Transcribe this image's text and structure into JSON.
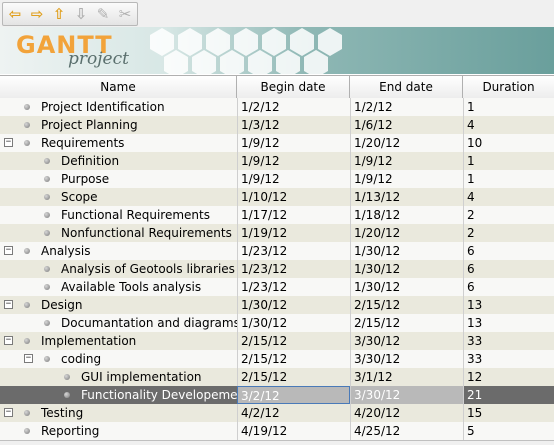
{
  "toolbar": {
    "buttons": [
      {
        "name": "back-arrow-icon",
        "glyph": "⇦",
        "color": "#e0a020"
      },
      {
        "name": "forward-arrow-icon",
        "glyph": "⇨",
        "color": "#e0a020"
      },
      {
        "name": "up-arrow-icon",
        "glyph": "⇧",
        "color": "#e0a020"
      },
      {
        "name": "down-arrow-icon",
        "glyph": "⇩",
        "color": "#b0b0b0"
      },
      {
        "name": "link-icon",
        "glyph": "✎",
        "color": "#b0b0b0"
      },
      {
        "name": "unlink-icon",
        "glyph": "✂",
        "color": "#b0b0b0"
      }
    ]
  },
  "banner": {
    "logo_main": "GANTT",
    "logo_sub": "project"
  },
  "columns": {
    "name": "Name",
    "begin": "Begin date",
    "end": "End date",
    "duration": "Duration"
  },
  "tasks": [
    {
      "name": "Project Identification",
      "begin": "1/2/12",
      "end": "1/2/12",
      "duration": "1",
      "level": 0,
      "toggle": ""
    },
    {
      "name": "Project Planning",
      "begin": "1/3/12",
      "end": "1/6/12",
      "duration": "4",
      "level": 0,
      "toggle": ""
    },
    {
      "name": "Requirements",
      "begin": "1/9/12",
      "end": "1/20/12",
      "duration": "10",
      "level": 0,
      "toggle": "−"
    },
    {
      "name": "Definition",
      "begin": "1/9/12",
      "end": "1/9/12",
      "duration": "1",
      "level": 1,
      "toggle": ""
    },
    {
      "name": "Purpose",
      "begin": "1/9/12",
      "end": "1/9/12",
      "duration": "1",
      "level": 1,
      "toggle": ""
    },
    {
      "name": "Scope",
      "begin": "1/10/12",
      "end": "1/13/12",
      "duration": "4",
      "level": 1,
      "toggle": ""
    },
    {
      "name": "Functional Requirements",
      "begin": "1/17/12",
      "end": "1/18/12",
      "duration": "2",
      "level": 1,
      "toggle": ""
    },
    {
      "name": "Nonfunctional Requirements",
      "begin": "1/19/12",
      "end": "1/20/12",
      "duration": "2",
      "level": 1,
      "toggle": ""
    },
    {
      "name": "Analysis",
      "begin": "1/23/12",
      "end": "1/30/12",
      "duration": "6",
      "level": 0,
      "toggle": "−"
    },
    {
      "name": "Analysis of Geotools libraries",
      "begin": "1/23/12",
      "end": "1/30/12",
      "duration": "6",
      "level": 1,
      "toggle": ""
    },
    {
      "name": "Available Tools analysis",
      "begin": "1/23/12",
      "end": "1/30/12",
      "duration": "6",
      "level": 1,
      "toggle": ""
    },
    {
      "name": "Design",
      "begin": "1/30/12",
      "end": "2/15/12",
      "duration": "13",
      "level": 0,
      "toggle": "−"
    },
    {
      "name": "Documantation and diagrams",
      "begin": "1/30/12",
      "end": "2/15/12",
      "duration": "13",
      "level": 1,
      "toggle": ""
    },
    {
      "name": "Implementation",
      "begin": "2/15/12",
      "end": "3/30/12",
      "duration": "33",
      "level": 0,
      "toggle": "−"
    },
    {
      "name": "coding",
      "begin": "2/15/12",
      "end": "3/30/12",
      "duration": "33",
      "level": 1,
      "toggle": "−"
    },
    {
      "name": "GUI implementation",
      "begin": "2/15/12",
      "end": "3/1/12",
      "duration": "12",
      "level": 2,
      "toggle": ""
    },
    {
      "name": "Functionality Developement",
      "begin": "3/2/12",
      "end": "3/30/12",
      "duration": "21",
      "level": 2,
      "toggle": "",
      "selected": true
    },
    {
      "name": "Testing",
      "begin": "4/2/12",
      "end": "4/20/12",
      "duration": "15",
      "level": 0,
      "toggle": "−"
    },
    {
      "name": "Reporting",
      "begin": "4/19/12",
      "end": "4/25/12",
      "duration": "5",
      "level": 0,
      "toggle": ""
    }
  ]
}
